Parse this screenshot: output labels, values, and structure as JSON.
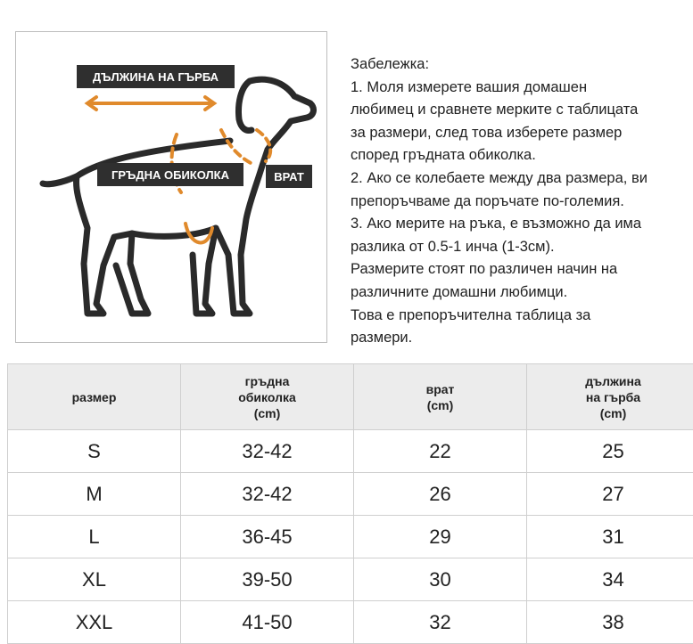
{
  "figure": {
    "labels": {
      "back_length": "ДЪЛЖИНА НА ГЪРБА",
      "chest": "ГРЪДНА ОБИКОЛКА",
      "neck": "ВРАТ"
    }
  },
  "notes": [
    "Забележка:",
    "1. Моля измерете вашия домашен",
    "любимец и сравнете мерките с таблицата",
    "за размери, след това изберете размер",
    "според гръдната обиколка.",
    "2. Ако се колебаете между два размера, ви",
    "препоръчваме да поръчате по-големия.",
    "3. Ако мерите на ръка, е възможно да има",
    "разлика от 0.5-1 инча (1-3см).",
    "Размерите стоят по различен начин на",
    "различните домашни любимци.",
    "Това е препоръчителна таблица за",
    "размери."
  ],
  "table": {
    "header": [
      [
        "размер"
      ],
      [
        "гръдна",
        "обиколка",
        "(cm)"
      ],
      [
        "врат",
        "(cm)"
      ],
      [
        "дължина",
        "на гърба",
        "(cm)"
      ]
    ],
    "rows": [
      [
        "S",
        "32-42",
        "22",
        "25"
      ],
      [
        "M",
        "32-42",
        "26",
        "27"
      ],
      [
        "L",
        "36-45",
        "29",
        "31"
      ],
      [
        "XL",
        "39-50",
        "30",
        "34"
      ],
      [
        "XXL",
        "41-50",
        "32",
        "38"
      ]
    ]
  }
}
